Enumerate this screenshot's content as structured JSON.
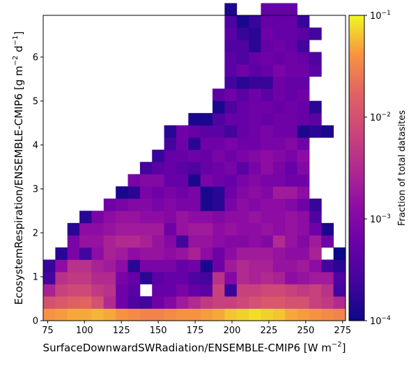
{
  "chart_data": {
    "type": "heatmap",
    "xlabel": "SurfaceDownwardSWRadiation/ENSEMBLE-CMIP6 [W m$^{-2}$]",
    "xlabel_base": "SurfaceDownwardSWRadiation/ENSEMBLE-CMIP6 [W m",
    "xlabel_sup": "−2",
    "xlabel_end": "]",
    "ylabel": "EcosystemRespiration/ENSEMBLE-CMIP6 [g m$^{-2}$ d$^{-1}$]",
    "ylabel_base": "EcosystemRespiration/ENSEMBLE-CMIP6 [g m",
    "ylabel_sup1": "−2",
    "ylabel_mid": " d",
    "ylabel_sup2": "−1",
    "ylabel_end": "]",
    "colorbar_label": "Fraction of total datasites",
    "colorbar_scale": "log",
    "colorbar_range": [
      0.0001,
      0.1
    ],
    "colorbar_ticks": [
      {
        "value": 0.1,
        "base": "10",
        "exp": "−1"
      },
      {
        "value": 0.01,
        "base": "10",
        "exp": "−2"
      },
      {
        "value": 0.001,
        "base": "10",
        "exp": "−3"
      },
      {
        "value": 0.0001,
        "base": "10",
        "exp": "−4"
      }
    ],
    "colormap": "plasma",
    "xlim": [
      72,
      277
    ],
    "ylim": [
      0,
      6.95
    ],
    "xticks": [
      "75",
      "100",
      "125",
      "150",
      "175",
      "200",
      "225",
      "250",
      "275"
    ],
    "xtick_values": [
      75,
      100,
      125,
      150,
      175,
      200,
      225,
      250,
      275
    ],
    "yticks": [
      "0",
      "1",
      "2",
      "3",
      "4",
      "5",
      "6"
    ],
    "ytick_values": [
      0,
      1,
      2,
      3,
      4,
      5,
      6
    ],
    "x_bin_edges_start": 72,
    "x_bin_width": 8.2,
    "y_bin_edges_start": 0,
    "y_bin_width": 0.278,
    "grid": false,
    "cells_log10": [
      [
        -1.4,
        -1.35,
        -1.3,
        -1.3,
        -1.25,
        -1.3,
        -1.4,
        -1.45,
        -1.5,
        -1.5,
        -1.45,
        -1.4,
        -1.4,
        -1.35,
        -1.3,
        -1.2,
        -1.15,
        -1.1,
        -1.15,
        -1.2,
        -1.3,
        -1.35,
        -1.4,
        -1.45,
        -1.5
      ],
      [
        -2.0,
        -1.9,
        -1.8,
        -1.75,
        -2.0,
        -2.5,
        -3.2,
        -3.5,
        -3.6,
        -3.2,
        -3.0,
        -2.7,
        -2.5,
        -2.3,
        -2.2,
        -2.2,
        -2.1,
        -2.0,
        -1.9,
        -1.9,
        -2.0,
        -2.0,
        -2.2,
        -2.3,
        -2.5
      ],
      [
        -2.6,
        -2.2,
        -2.1,
        -2.1,
        -2.3,
        -2.4,
        -3.2,
        -3.4,
        null,
        -3.3,
        -3.3,
        -3.1,
        -3.3,
        -3.4,
        -2.2,
        -3.7,
        -2.2,
        -2.2,
        -2.1,
        -2.1,
        -2.2,
        -2.3,
        -2.2,
        -2.4,
        -3.6
      ],
      [
        -3.6,
        -2.4,
        -2.3,
        -2.3,
        -2.5,
        -2.5,
        -3.1,
        -3.3,
        -3.8,
        -3.4,
        -3.3,
        -3.3,
        -3.5,
        -3.6,
        -2.4,
        -3.0,
        -2.5,
        -2.6,
        -2.5,
        -2.6,
        -2.9,
        -2.8,
        -2.7,
        -2.7,
        -3.5
      ],
      [
        -3.7,
        -2.9,
        -2.4,
        -2.4,
        -2.6,
        -2.7,
        -2.9,
        -3.8,
        -3.1,
        -3.1,
        -3.1,
        -3.3,
        -3.2,
        -3.9,
        -3.2,
        -2.7,
        -2.5,
        -2.6,
        -2.6,
        -2.8,
        -2.8,
        -2.7,
        -2.9,
        -3.6,
        -3.8
      ],
      [
        null,
        -3.8,
        -3.1,
        -3.6,
        -2.9,
        -2.6,
        -2.7,
        -2.9,
        -2.8,
        -2.8,
        -2.9,
        -2.8,
        -2.6,
        -2.9,
        -3.2,
        -2.9,
        -2.7,
        -2.7,
        -2.7,
        -2.8,
        -2.9,
        -2.9,
        -2.6,
        null,
        -4.0
      ],
      [
        null,
        null,
        -3.1,
        -2.8,
        -2.8,
        -2.6,
        -2.5,
        -2.5,
        -2.6,
        -2.8,
        -3.0,
        -3.6,
        -2.8,
        -2.8,
        -2.9,
        -3.0,
        -3.0,
        -2.9,
        -3.0,
        -2.5,
        -2.8,
        -3.0,
        -2.7,
        -3.2,
        null
      ],
      [
        null,
        null,
        -3.8,
        -2.9,
        -2.9,
        -2.8,
        -2.7,
        -2.7,
        -2.7,
        -2.7,
        -3.2,
        -2.8,
        -2.7,
        -2.7,
        -2.9,
        -2.8,
        -2.9,
        -2.9,
        -2.8,
        -2.9,
        -2.8,
        -2.9,
        -3.2,
        -3.9,
        null
      ],
      [
        null,
        null,
        null,
        -3.8,
        -3.1,
        -2.9,
        -2.8,
        -2.8,
        -2.9,
        -2.9,
        -3.0,
        -2.8,
        -2.9,
        -2.9,
        -3.0,
        -2.9,
        -2.9,
        -2.8,
        -2.9,
        -2.9,
        -2.8,
        -2.9,
        -3.5,
        null,
        null
      ],
      [
        null,
        null,
        null,
        null,
        null,
        -3.2,
        -3.1,
        -3.0,
        -3.0,
        -3.1,
        -3.0,
        -3.1,
        -3.1,
        -3.9,
        -3.8,
        -3.1,
        -2.9,
        -3.0,
        -2.9,
        -2.9,
        -3.0,
        -3.2,
        -3.7,
        null,
        null
      ],
      [
        null,
        null,
        null,
        null,
        null,
        null,
        -3.9,
        -3.8,
        -3.1,
        -3.2,
        -3.1,
        -3.2,
        -3.1,
        -3.9,
        -3.8,
        -3.2,
        -3.0,
        -2.9,
        -3.0,
        -2.7,
        -2.7,
        -2.9,
        null,
        null,
        null
      ],
      [
        null,
        null,
        null,
        null,
        null,
        null,
        null,
        -3.1,
        -3.0,
        -3.0,
        -3.3,
        -3.3,
        -3.9,
        -3.1,
        -3.2,
        -3.3,
        -3.1,
        -3.0,
        -3.1,
        -3.1,
        -3.2,
        -3.2,
        null,
        null,
        null
      ],
      [
        null,
        null,
        null,
        null,
        null,
        null,
        null,
        null,
        -3.6,
        -3.4,
        -3.3,
        -3.4,
        -3.5,
        -3.3,
        -3.2,
        -3.1,
        -3.4,
        -3.1,
        -2.9,
        -3.1,
        -3.3,
        -3.0,
        null,
        null,
        null
      ],
      [
        null,
        null,
        null,
        null,
        null,
        null,
        null,
        null,
        null,
        -3.7,
        -3.3,
        -3.3,
        -3.2,
        -3.3,
        -3.1,
        -3.2,
        -3.1,
        -3.0,
        -2.9,
        -3.0,
        -3.1,
        -2.9,
        null,
        null,
        null
      ],
      [
        null,
        null,
        null,
        null,
        null,
        null,
        null,
        null,
        null,
        null,
        -3.6,
        -3.2,
        -3.8,
        -3.2,
        -3.2,
        -3.1,
        -3.2,
        -3.2,
        -3.1,
        -3.1,
        -3.0,
        -3.2,
        null,
        null,
        null
      ],
      [
        null,
        null,
        null,
        null,
        null,
        null,
        null,
        null,
        null,
        null,
        -3.8,
        -3.2,
        -3.3,
        -3.4,
        -3.4,
        -3.6,
        -3.3,
        -3.2,
        -3.1,
        -3.2,
        -3.2,
        -3.9,
        -3.8,
        -3.9,
        null
      ],
      [
        null,
        null,
        null,
        null,
        null,
        null,
        null,
        null,
        null,
        null,
        null,
        null,
        -3.9,
        -3.9,
        -3.5,
        -3.3,
        -3.3,
        -3.2,
        -3.3,
        -3.2,
        -3.2,
        -3.3,
        -3.4,
        null,
        null
      ],
      [
        null,
        null,
        null,
        null,
        null,
        null,
        null,
        null,
        null,
        null,
        null,
        null,
        null,
        null,
        -3.9,
        -3.5,
        -3.3,
        -3.2,
        -3.2,
        -3.3,
        -3.2,
        -3.3,
        -3.8,
        null,
        null
      ],
      [
        null,
        null,
        null,
        null,
        null,
        null,
        null,
        null,
        null,
        null,
        null,
        null,
        null,
        null,
        -3.4,
        -3.2,
        -3.4,
        -3.2,
        -3.4,
        -3.2,
        -3.3,
        -3.2,
        null,
        null,
        null
      ],
      [
        null,
        null,
        null,
        null,
        null,
        null,
        null,
        null,
        null,
        null,
        null,
        null,
        null,
        null,
        null,
        -3.6,
        -3.8,
        -3.7,
        -3.7,
        -3.2,
        -3.3,
        -3.3,
        null,
        null,
        null
      ],
      [
        null,
        null,
        null,
        null,
        null,
        null,
        null,
        null,
        null,
        null,
        null,
        null,
        null,
        null,
        null,
        -3.4,
        -3.2,
        -3.4,
        -3.3,
        -3.1,
        -3.2,
        -3.2,
        -3.4,
        null,
        null
      ],
      [
        null,
        null,
        null,
        null,
        null,
        null,
        null,
        null,
        null,
        null,
        null,
        null,
        null,
        null,
        null,
        -3.4,
        -3.5,
        -3.3,
        -3.2,
        -3.3,
        -3.2,
        -3.3,
        -3.5,
        null,
        null
      ],
      [
        null,
        null,
        null,
        null,
        null,
        null,
        null,
        null,
        null,
        null,
        null,
        null,
        null,
        null,
        null,
        -3.5,
        -3.5,
        -3.8,
        -3.3,
        -3.2,
        -3.3,
        -3.6,
        null,
        null,
        null
      ],
      [
        null,
        null,
        null,
        null,
        null,
        null,
        null,
        null,
        null,
        null,
        null,
        null,
        null,
        null,
        null,
        -3.4,
        -3.7,
        -3.8,
        -3.2,
        -3.3,
        -3.3,
        -3.4,
        -3.6,
        null,
        null
      ],
      [
        null,
        null,
        null,
        null,
        null,
        null,
        null,
        null,
        null,
        null,
        null,
        null,
        null,
        null,
        null,
        -3.5,
        -3.9,
        -3.7,
        -3.3,
        -3.3,
        -3.3,
        -3.7,
        null,
        null,
        null
      ],
      [
        null,
        null,
        null,
        null,
        null,
        null,
        null,
        null,
        null,
        null,
        null,
        null,
        null,
        null,
        null,
        -3.9,
        null,
        null,
        -3.3,
        -3.3,
        -3.3,
        null,
        null,
        null,
        null
      ]
    ]
  }
}
